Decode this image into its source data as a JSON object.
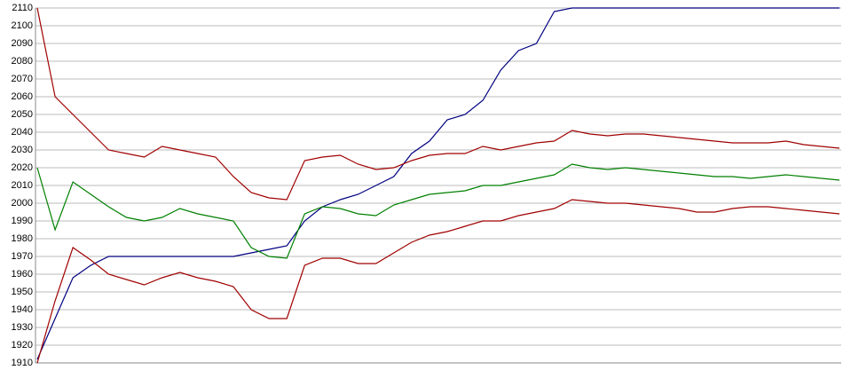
{
  "chart_data": {
    "type": "line",
    "categories": [
      null,
      null,
      null,
      null,
      null,
      null,
      null,
      null,
      null,
      null,
      null,
      null,
      null,
      null,
      null,
      null,
      null,
      null,
      null,
      null,
      null,
      null,
      null,
      null,
      null,
      null,
      null,
      null,
      null,
      null,
      null,
      null,
      null,
      null,
      null,
      null,
      null,
      null,
      null,
      null,
      null,
      null,
      null,
      null,
      null,
      null
    ],
    "series": [
      {
        "color": "#000080",
        "values": [
          1912,
          1935,
          1958,
          1965,
          1970,
          1970,
          1970,
          1970,
          1970,
          1970,
          1970,
          1970,
          1972,
          1974,
          1976,
          1990,
          1998,
          2002,
          2005,
          2010,
          2015,
          2028,
          2035,
          2047,
          2050,
          2058,
          2075,
          2086,
          2090,
          2108,
          2110,
          2110,
          2110,
          2110,
          2110,
          2110,
          2110,
          2110,
          2110,
          2110,
          2110,
          2110,
          2110,
          2110,
          2110,
          2110
        ]
      },
      {
        "color": "#a00000",
        "values": [
          2110,
          2060,
          2050,
          2040,
          2030,
          2028,
          2026,
          2032,
          2030,
          2028,
          2026,
          2015,
          2006,
          2003,
          2002,
          2024,
          2026,
          2027,
          2022,
          2019,
          2020,
          2024,
          2027,
          2028,
          2028,
          2032,
          2030,
          2032,
          2034,
          2035,
          2041,
          2039,
          2038,
          2039,
          2039,
          2038,
          2037,
          2036,
          2035,
          2034,
          2034,
          2034,
          2035,
          2033,
          2032,
          2031
        ]
      },
      {
        "color": "#008000",
        "values": [
          2020,
          1985,
          2012,
          2005,
          1998,
          1992,
          1990,
          1992,
          1997,
          1994,
          1992,
          1990,
          1975,
          1970,
          1969,
          1994,
          1998,
          1997,
          1994,
          1993,
          1999,
          2002,
          2005,
          2006,
          2007,
          2010,
          2010,
          2012,
          2014,
          2016,
          2022,
          2020,
          2019,
          2020,
          2019,
          2018,
          2017,
          2016,
          2015,
          2015,
          2014,
          2015,
          2016,
          2015,
          2014,
          2013
        ]
      },
      {
        "color": "#a00000",
        "values": [
          1910,
          1945,
          1975,
          1968,
          1960,
          1957,
          1954,
          1958,
          1961,
          1958,
          1956,
          1953,
          1940,
          1935,
          1935,
          1965,
          1969,
          1969,
          1966,
          1966,
          1972,
          1978,
          1982,
          1984,
          1987,
          1990,
          1990,
          1993,
          1995,
          1997,
          2002,
          2001,
          2000,
          2000,
          1999,
          1998,
          1997,
          1995,
          1995,
          1997,
          1998,
          1998,
          1997,
          1996,
          1995,
          1994
        ]
      }
    ],
    "ylim": [
      1910,
      2110
    ],
    "yticks": [
      1910,
      1920,
      1930,
      1940,
      1950,
      1960,
      1970,
      1980,
      1990,
      2000,
      2010,
      2020,
      2030,
      2040,
      2050,
      2060,
      2070,
      2080,
      2090,
      2100,
      2110
    ],
    "grid": true
  }
}
